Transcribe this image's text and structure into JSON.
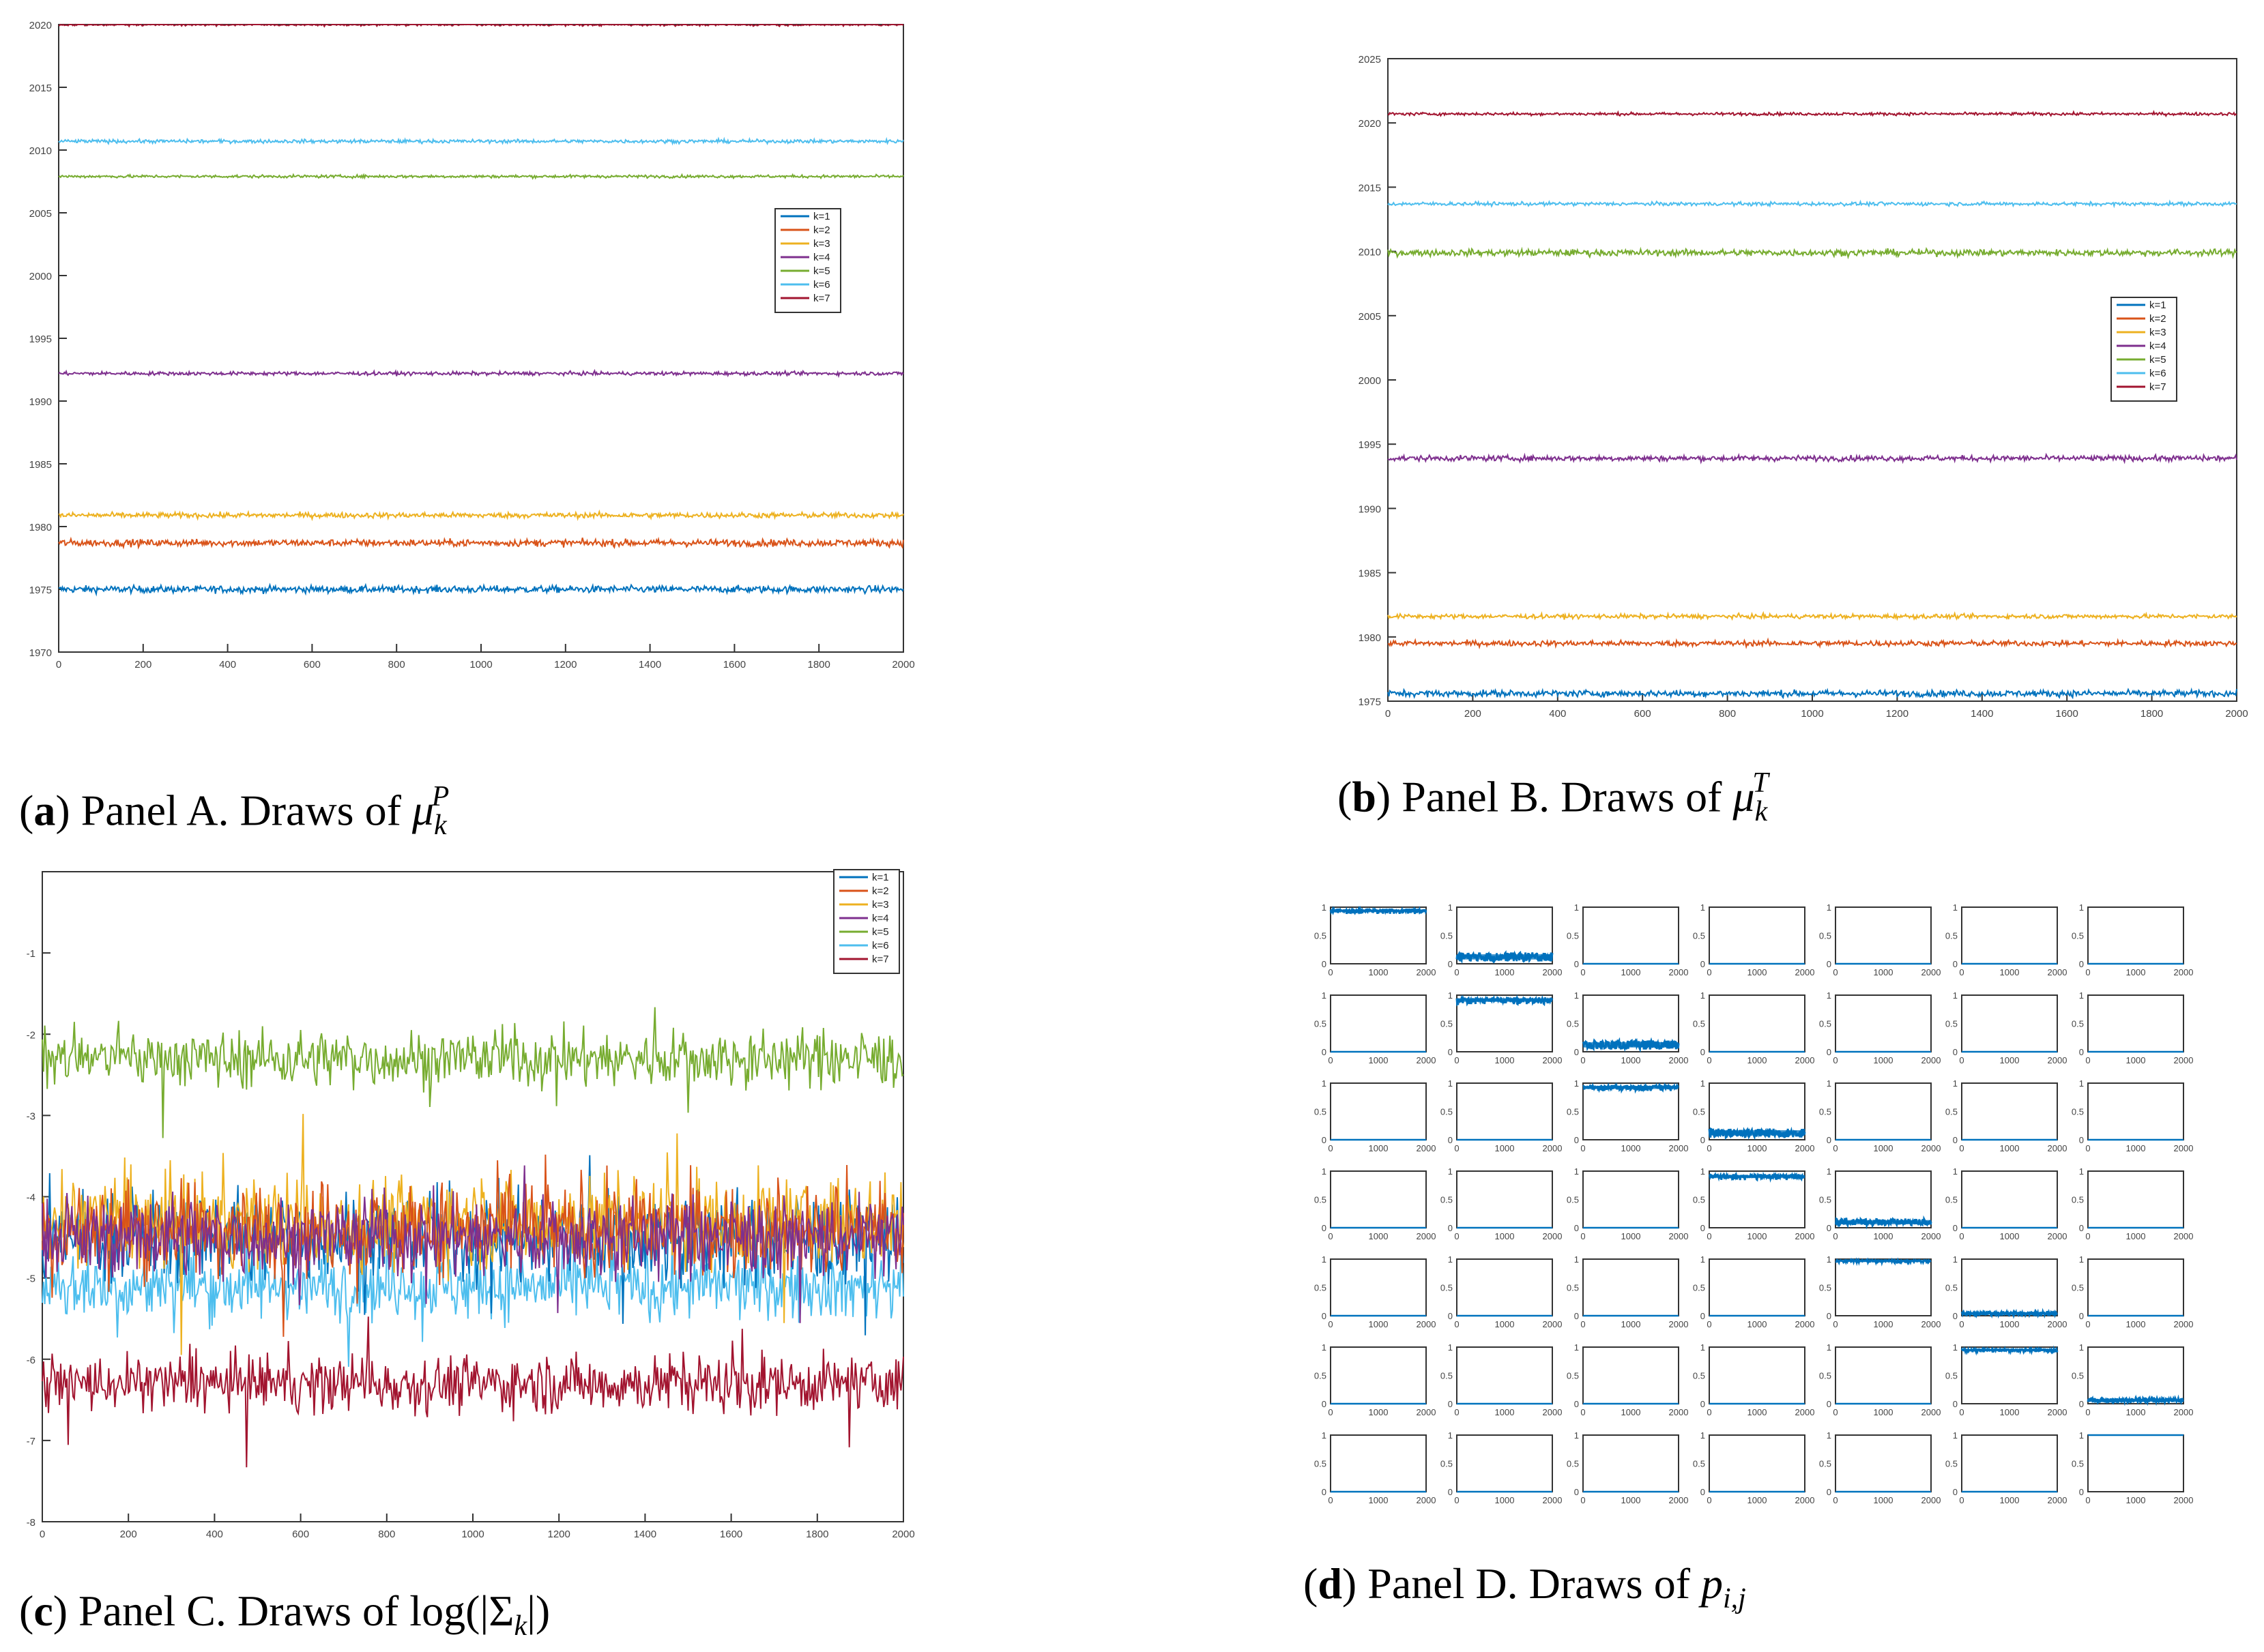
{
  "colors": {
    "k1": "#0072BD",
    "k2": "#D95319",
    "k3": "#EDB120",
    "k4": "#7E2F8E",
    "k5": "#77AC30",
    "k6": "#4DBEEE",
    "k7": "#A2142F",
    "frame": "#333333",
    "grid": "#c9c9c9"
  },
  "captions": {
    "a": {
      "letter": "a",
      "text": " Panel A. Draws of ",
      "sym": "μ",
      "sub": "k",
      "sup": "P"
    },
    "b": {
      "letter": "b",
      "text": " Panel B. Draws of ",
      "sym": "μ",
      "sub": "k",
      "sup": "T"
    },
    "c": {
      "letter": "c",
      "text": " Panel C. Draws of ",
      "pre": "log(|Σ",
      "sub": "k",
      "post": "|)"
    },
    "d": {
      "letter": "d",
      "text": " Panel D. Draws of ",
      "sym": "p",
      "sub": "i,j"
    }
  },
  "chart_data": [
    {
      "id": "panelA",
      "type": "line",
      "title": "Panel A. Draws of μ_k^P",
      "xlim": [
        0,
        2000
      ],
      "ylim": [
        1970,
        2020
      ],
      "xticks": [
        0,
        200,
        400,
        600,
        800,
        1000,
        1200,
        1400,
        1600,
        1800,
        2000
      ],
      "xtick_labels": [
        "0",
        "200",
        "400",
        "600",
        "800",
        "1000",
        "1200",
        "1400",
        "1600",
        "1800",
        "2000"
      ],
      "yticks": [
        1970,
        1975,
        1980,
        1985,
        1990,
        1995,
        2000,
        2005,
        2010,
        2015,
        2020
      ],
      "ytick_labels": [
        "1970",
        "1975",
        "1980",
        "1985",
        "1990",
        "1995",
        "2000",
        "2005",
        "2010",
        "2015",
        "2020"
      ],
      "legend": [
        "k=1",
        "k=2",
        "k=3",
        "k=4",
        "k=5",
        "k=6",
        "k=7"
      ],
      "legend_position": "center-right",
      "series": [
        {
          "name": "k=1",
          "mean": 1975.0,
          "noise": 0.2
        },
        {
          "name": "k=2",
          "mean": 1978.7,
          "noise": 0.2
        },
        {
          "name": "k=3",
          "mean": 1980.9,
          "noise": 0.15
        },
        {
          "name": "k=4",
          "mean": 1992.2,
          "noise": 0.1
        },
        {
          "name": "k=5",
          "mean": 2007.9,
          "noise": 0.08
        },
        {
          "name": "k=6",
          "mean": 2010.7,
          "noise": 0.1
        },
        {
          "name": "k=7",
          "mean": 2020.0,
          "noise": 0.08
        }
      ]
    },
    {
      "id": "panelB",
      "type": "line",
      "title": "Panel B. Draws of μ_k^T",
      "xlim": [
        0,
        2000
      ],
      "ylim": [
        1975,
        2025
      ],
      "xticks": [
        0,
        200,
        400,
        600,
        800,
        1000,
        1200,
        1400,
        1600,
        1800,
        2000
      ],
      "xtick_labels": [
        "0",
        "200",
        "400",
        "600",
        "800",
        "1000",
        "1200",
        "1400",
        "1600",
        "1800",
        "2000"
      ],
      "yticks": [
        1975,
        1980,
        1985,
        1990,
        1995,
        2000,
        2005,
        2010,
        2015,
        2020,
        2025
      ],
      "ytick_labels": [
        "1975",
        "1980",
        "1985",
        "1990",
        "1995",
        "2000",
        "2005",
        "2010",
        "2015",
        "2020",
        "2025"
      ],
      "legend": [
        "k=1",
        "k=2",
        "k=3",
        "k=4",
        "k=5",
        "k=6",
        "k=7"
      ],
      "legend_position": "center-right",
      "series": [
        {
          "name": "k=1",
          "mean": 1975.6,
          "noise": 0.18
        },
        {
          "name": "k=2",
          "mean": 1979.5,
          "noise": 0.15
        },
        {
          "name": "k=3",
          "mean": 1981.6,
          "noise": 0.12
        },
        {
          "name": "k=4",
          "mean": 1993.9,
          "noise": 0.15
        },
        {
          "name": "k=5",
          "mean": 2009.9,
          "noise": 0.18
        },
        {
          "name": "k=6",
          "mean": 2013.7,
          "noise": 0.1
        },
        {
          "name": "k=7",
          "mean": 2020.7,
          "noise": 0.08
        }
      ]
    },
    {
      "id": "panelC",
      "type": "line",
      "title": "Panel C. Draws of log(|Σ_k|)",
      "xlim": [
        0,
        2000
      ],
      "ylim": [
        -8,
        0
      ],
      "xticks": [
        0,
        200,
        400,
        600,
        800,
        1000,
        1200,
        1400,
        1600,
        1800,
        2000
      ],
      "xtick_labels": [
        "0",
        "200",
        "400",
        "600",
        "800",
        "1000",
        "1200",
        "1400",
        "1600",
        "1800",
        "2000"
      ],
      "yticks": [
        -8,
        -7,
        -6,
        -5,
        -4,
        -3,
        -2,
        -1
      ],
      "ytick_labels": [
        "-8",
        "-7",
        "-6",
        "-5",
        "-4",
        "-3",
        "-2",
        "-1"
      ],
      "legend": [
        "k=1",
        "k=2",
        "k=3",
        "k=4",
        "k=5",
        "k=6",
        "k=7"
      ],
      "legend_position": "top-right",
      "series": [
        {
          "name": "k=1",
          "mean": -4.5,
          "noise": 0.4
        },
        {
          "name": "k=2",
          "mean": -4.4,
          "noise": 0.4
        },
        {
          "name": "k=3",
          "mean": -4.3,
          "noise": 0.4
        },
        {
          "name": "k=4",
          "mean": -4.5,
          "noise": 0.35
        },
        {
          "name": "k=5",
          "mean": -2.3,
          "noise": 0.25
        },
        {
          "name": "k=6",
          "mean": -5.1,
          "noise": 0.3
        },
        {
          "name": "k=7",
          "mean": -6.3,
          "noise": 0.25
        }
      ]
    },
    {
      "id": "panelD",
      "type": "line",
      "title": "Panel D. Draws of p_{i,j}",
      "grid_rows": 7,
      "grid_cols": 7,
      "xlim": [
        0,
        2000
      ],
      "ylim": [
        0,
        1
      ],
      "xticks": [
        0,
        1000,
        2000
      ],
      "xtick_labels": [
        "0",
        "1000",
        "2000"
      ],
      "yticks": [
        0,
        0.5,
        1
      ],
      "ytick_labels": [
        "0",
        "0.5",
        "1"
      ],
      "matrix": [
        [
          0.94,
          0.12,
          0,
          0,
          0,
          0,
          0
        ],
        [
          0,
          0.92,
          0.12,
          0,
          0,
          0,
          0
        ],
        [
          0,
          0,
          0.93,
          0.12,
          0,
          0,
          0
        ],
        [
          0,
          0,
          0,
          0.91,
          0.1,
          0,
          0
        ],
        [
          0,
          0,
          0,
          0,
          0.97,
          0.04,
          0
        ],
        [
          0,
          0,
          0,
          0,
          0,
          0.95,
          0.06
        ],
        [
          0,
          0,
          0,
          0,
          0,
          0,
          1.0
        ]
      ],
      "noise_scale": [
        [
          0.06,
          0.08,
          0,
          0,
          0,
          0,
          0
        ],
        [
          0,
          0.08,
          0.08,
          0,
          0,
          0,
          0
        ],
        [
          0,
          0,
          0.07,
          0.08,
          0,
          0,
          0
        ],
        [
          0,
          0,
          0,
          0.07,
          0.06,
          0,
          0
        ],
        [
          0,
          0,
          0,
          0,
          0.03,
          0.03,
          0
        ],
        [
          0,
          0,
          0,
          0,
          0,
          0.04,
          0.04
        ],
        [
          0,
          0,
          0,
          0,
          0,
          0,
          0
        ]
      ]
    }
  ]
}
